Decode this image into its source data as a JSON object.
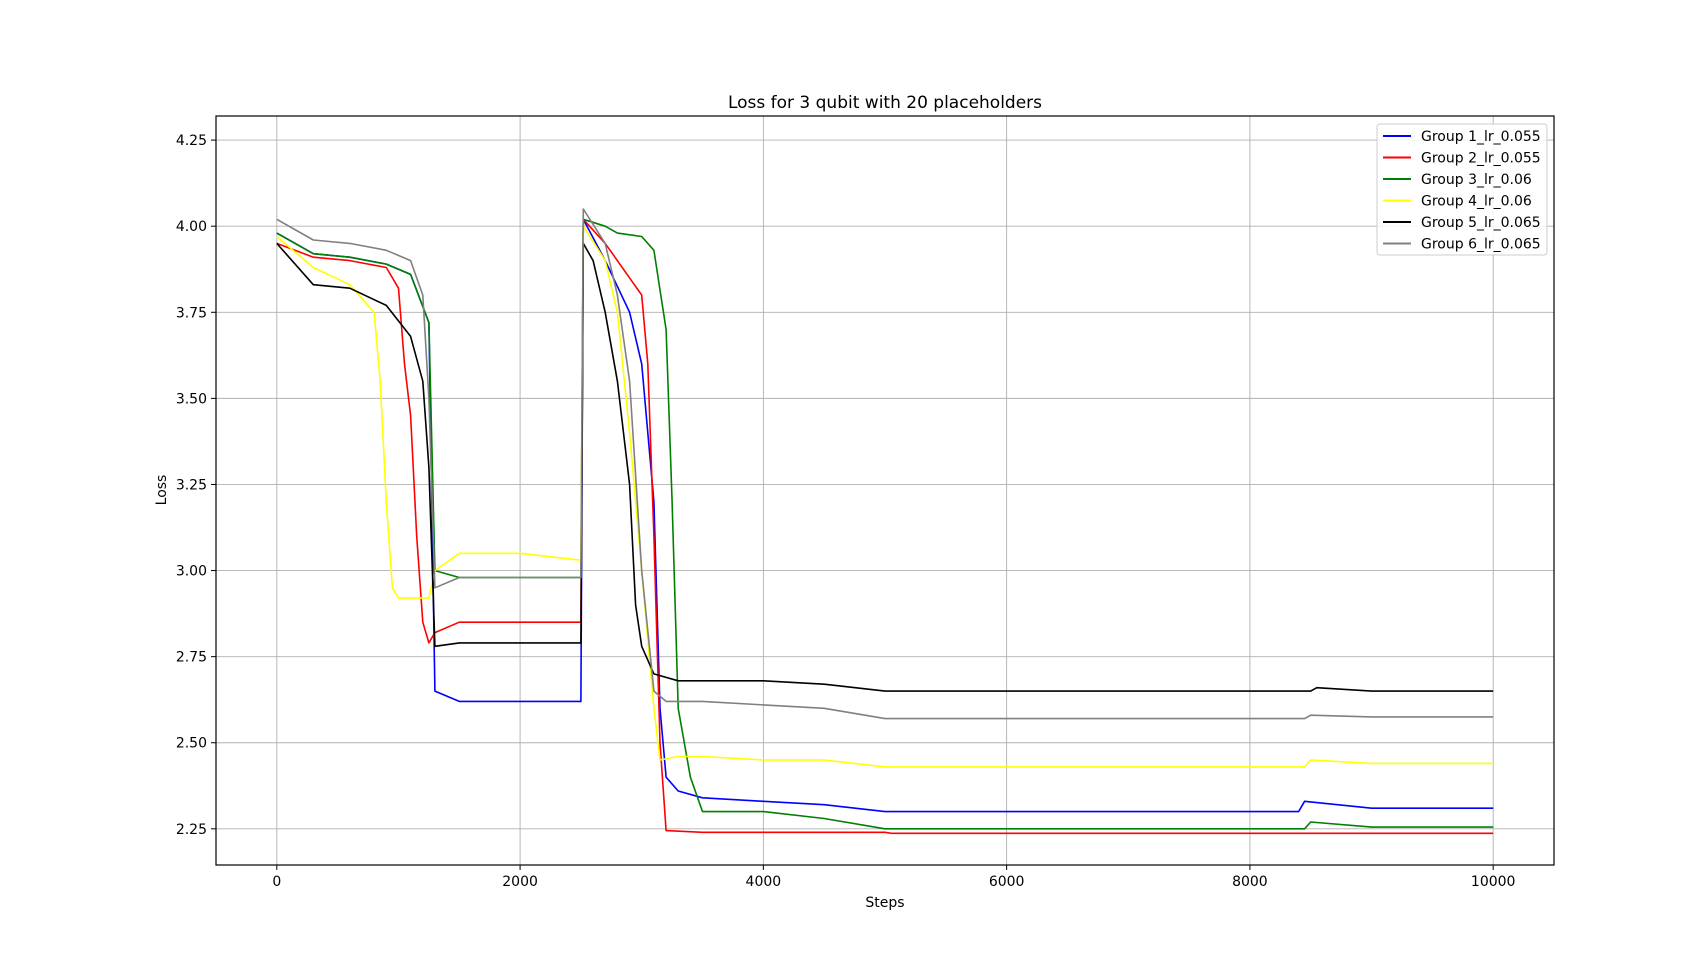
{
  "chart_data": {
    "type": "line",
    "title": "Loss for 3 qubit with 20 placeholders",
    "xlabel": "Steps",
    "ylabel": "Loss",
    "xlim": [
      -500,
      10500
    ],
    "ylim": [
      2.145,
      4.32
    ],
    "xticks": [
      0,
      2000,
      4000,
      6000,
      8000,
      10000
    ],
    "xtick_labels": [
      "0",
      "2000",
      "4000",
      "6000",
      "8000",
      "10000"
    ],
    "yticks": [
      2.25,
      2.5,
      2.75,
      3.0,
      3.25,
      3.5,
      3.75,
      4.0,
      4.25
    ],
    "ytick_labels": [
      "2.25",
      "2.50",
      "2.75",
      "3.00",
      "3.25",
      "3.50",
      "3.75",
      "4.00",
      "4.25"
    ],
    "grid": true,
    "legend_position": "top-right",
    "series": [
      {
        "name": "Group 1_lr_0.055",
        "color": "#0000ff",
        "x": [
          0,
          300,
          600,
          900,
          1100,
          1250,
          1300,
          1500,
          2000,
          2500,
          2520,
          2700,
          2900,
          3000,
          3100,
          3150,
          3200,
          3300,
          3500,
          4000,
          4500,
          5000,
          8400,
          8450,
          9000,
          10000
        ],
        "y": [
          3.98,
          3.92,
          3.91,
          3.89,
          3.86,
          3.72,
          2.65,
          2.62,
          2.62,
          2.62,
          4.02,
          3.9,
          3.75,
          3.6,
          3.2,
          2.6,
          2.4,
          2.36,
          2.34,
          2.33,
          2.32,
          2.3,
          2.3,
          2.33,
          2.31,
          2.31
        ]
      },
      {
        "name": "Group 2_lr_0.055",
        "color": "#ff0000",
        "x": [
          0,
          300,
          600,
          900,
          1000,
          1050,
          1100,
          1150,
          1200,
          1250,
          1300,
          1500,
          2000,
          2500,
          2520,
          2700,
          2900,
          3000,
          3050,
          3100,
          3150,
          3200,
          3500,
          4000,
          4500,
          5000,
          5050,
          10000
        ],
        "y": [
          3.95,
          3.91,
          3.9,
          3.88,
          3.82,
          3.6,
          3.45,
          3.1,
          2.85,
          2.79,
          2.82,
          2.85,
          2.85,
          2.85,
          4.02,
          3.95,
          3.85,
          3.8,
          3.6,
          3.1,
          2.5,
          2.245,
          2.24,
          2.24,
          2.24,
          2.24,
          2.237,
          2.237
        ]
      },
      {
        "name": "Group 3_lr_0.06",
        "color": "#008000",
        "x": [
          0,
          300,
          600,
          900,
          1100,
          1250,
          1300,
          1500,
          2000,
          2500,
          2520,
          2700,
          2800,
          3000,
          3100,
          3200,
          3250,
          3300,
          3400,
          3500,
          4000,
          4500,
          5000,
          8450,
          8500,
          9000,
          10000
        ],
        "y": [
          3.98,
          3.92,
          3.91,
          3.89,
          3.86,
          3.72,
          3.0,
          2.98,
          2.98,
          2.98,
          4.02,
          4.0,
          3.98,
          3.97,
          3.93,
          3.7,
          3.2,
          2.6,
          2.4,
          2.3,
          2.3,
          2.28,
          2.25,
          2.25,
          2.27,
          2.255,
          2.255
        ]
      },
      {
        "name": "Group 4_lr_0.06",
        "color": "#ffff00",
        "x": [
          0,
          300,
          600,
          800,
          850,
          900,
          950,
          1000,
          1200,
          1250,
          1300,
          1500,
          2000,
          2500,
          2520,
          2700,
          2800,
          2900,
          3000,
          3100,
          3150,
          3300,
          3500,
          4000,
          4500,
          5000,
          8450,
          8500,
          9000,
          10000
        ],
        "y": [
          3.97,
          3.88,
          3.83,
          3.75,
          3.55,
          3.2,
          2.95,
          2.92,
          2.92,
          2.92,
          3.0,
          3.05,
          3.05,
          3.03,
          4.0,
          3.9,
          3.75,
          3.4,
          3.0,
          2.6,
          2.45,
          2.46,
          2.46,
          2.45,
          2.45,
          2.43,
          2.43,
          2.45,
          2.44,
          2.44
        ]
      },
      {
        "name": "Group 5_lr_0.065",
        "color": "#000000",
        "x": [
          0,
          300,
          600,
          900,
          1100,
          1200,
          1250,
          1300,
          1500,
          2000,
          2500,
          2520,
          2600,
          2700,
          2800,
          2900,
          2950,
          3000,
          3100,
          3300,
          3500,
          4000,
          4500,
          5000,
          8500,
          8550,
          9000,
          10000
        ],
        "y": [
          3.95,
          3.83,
          3.82,
          3.77,
          3.68,
          3.55,
          3.3,
          2.78,
          2.79,
          2.79,
          2.79,
          3.95,
          3.9,
          3.75,
          3.55,
          3.25,
          2.9,
          2.78,
          2.7,
          2.68,
          2.68,
          2.68,
          2.67,
          2.65,
          2.65,
          2.66,
          2.65,
          2.65
        ]
      },
      {
        "name": "Group 6_lr_0.065",
        "color": "#808080",
        "x": [
          0,
          300,
          600,
          900,
          1100,
          1200,
          1250,
          1300,
          1500,
          2000,
          2500,
          2520,
          2700,
          2800,
          2900,
          3000,
          3100,
          3200,
          3500,
          4000,
          4500,
          5000,
          8450,
          8500,
          9000,
          10000
        ],
        "y": [
          4.02,
          3.96,
          3.95,
          3.93,
          3.9,
          3.8,
          3.5,
          2.95,
          2.98,
          2.98,
          2.98,
          4.05,
          3.95,
          3.8,
          3.55,
          3.0,
          2.65,
          2.62,
          2.62,
          2.61,
          2.6,
          2.57,
          2.57,
          2.58,
          2.575,
          2.575
        ]
      }
    ]
  }
}
